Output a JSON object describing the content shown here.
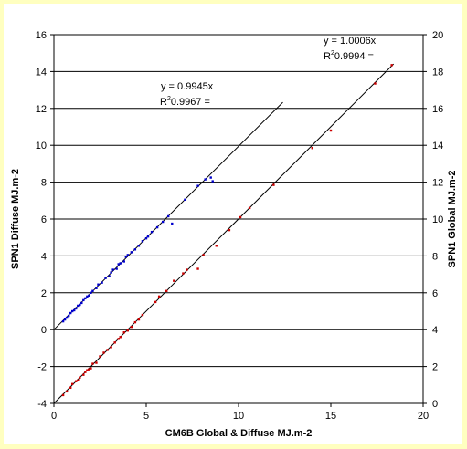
{
  "chart_data": {
    "type": "scatter",
    "title": "",
    "xlabel": "CM6B Global & Diffuse MJ.m-2",
    "ylabel_left": "SPN1 Diffuse MJ.m-2",
    "ylabel_right": "SPN1 Global MJ.m-2",
    "xlim": [
      0,
      20
    ],
    "ylim_left": [
      -4,
      16
    ],
    "ylim_right": [
      0,
      20
    ],
    "x_ticks": [
      "0",
      "5",
      "10",
      "15",
      "20"
    ],
    "y_left_ticks": [
      "-4",
      "-2",
      "0",
      "2",
      "4",
      "6",
      "8",
      "10",
      "12",
      "14",
      "16"
    ],
    "y_right_ticks": [
      "0",
      "2",
      "4",
      "6",
      "8",
      "10",
      "12",
      "14",
      "16",
      "18",
      "20"
    ],
    "grid": "horizontal",
    "legend": "none",
    "series": [
      {
        "axis": "left",
        "color": "#0000cc",
        "fit_slope": 0.9945,
        "fit_x_max": 12.4,
        "x": [
          0.5,
          0.6,
          0.7,
          0.8,
          0.9,
          1.0,
          1.1,
          1.2,
          1.3,
          1.4,
          1.5,
          1.6,
          1.7,
          1.8,
          1.9,
          2.0,
          2.1,
          2.3,
          2.4,
          2.6,
          2.8,
          3.0,
          3.1,
          3.2,
          3.4,
          3.5,
          3.6,
          3.8,
          3.9,
          4.0,
          4.2,
          4.4,
          4.6,
          4.8,
          5.0,
          5.1,
          5.3,
          5.6,
          5.9,
          6.2,
          6.4,
          7.1,
          7.8,
          8.2,
          8.5,
          8.6
        ],
        "y": [
          0.45,
          0.55,
          0.65,
          0.75,
          0.9,
          1.0,
          1.05,
          1.15,
          1.3,
          1.35,
          1.45,
          1.6,
          1.7,
          1.8,
          1.85,
          2.0,
          2.1,
          2.25,
          2.45,
          2.55,
          2.8,
          2.9,
          3.1,
          3.25,
          3.3,
          3.55,
          3.6,
          3.7,
          3.95,
          4.05,
          4.2,
          4.35,
          4.55,
          4.8,
          4.95,
          5.05,
          5.3,
          5.55,
          5.85,
          6.15,
          5.75,
          7.05,
          7.8,
          8.15,
          8.25,
          8.05
        ]
      },
      {
        "axis": "right",
        "color": "#cc0000",
        "fit_slope": 1.0006,
        "fit_x_max": 18.4,
        "x": [
          0.5,
          0.7,
          0.9,
          1.0,
          1.2,
          1.3,
          1.4,
          1.6,
          1.7,
          1.8,
          1.9,
          2.0,
          2.1,
          2.3,
          2.5,
          2.7,
          2.9,
          3.1,
          3.3,
          3.5,
          3.6,
          3.8,
          4.0,
          4.2,
          4.4,
          4.6,
          4.8,
          5.5,
          5.7,
          6.1,
          6.5,
          7.0,
          7.2,
          7.8,
          8.1,
          8.8,
          9.5,
          10.1,
          10.6,
          11.9,
          14.0,
          15.0,
          17.4,
          18.3
        ],
        "y": [
          0.45,
          0.65,
          0.85,
          1.05,
          1.2,
          1.25,
          1.4,
          1.55,
          1.7,
          1.8,
          1.85,
          1.9,
          2.15,
          2.2,
          2.55,
          2.75,
          2.9,
          3.05,
          3.3,
          3.5,
          3.6,
          3.85,
          3.95,
          4.15,
          4.4,
          4.55,
          4.8,
          5.5,
          5.8,
          6.1,
          6.65,
          7.05,
          7.25,
          7.3,
          8.05,
          8.55,
          9.4,
          10.1,
          10.6,
          11.85,
          13.85,
          14.8,
          17.35,
          18.35
        ]
      }
    ],
    "annotations": {
      "diffuse_eq": "y = 0.9945x",
      "diffuse_r2_base": "R",
      "diffuse_r2_sup": "2",
      "diffuse_r2_value": "0.9967 =",
      "global_eq": "y = 1.0006x",
      "global_r2_base": "R",
      "global_r2_sup": "2",
      "global_r2_value": "0.9994 ="
    }
  }
}
